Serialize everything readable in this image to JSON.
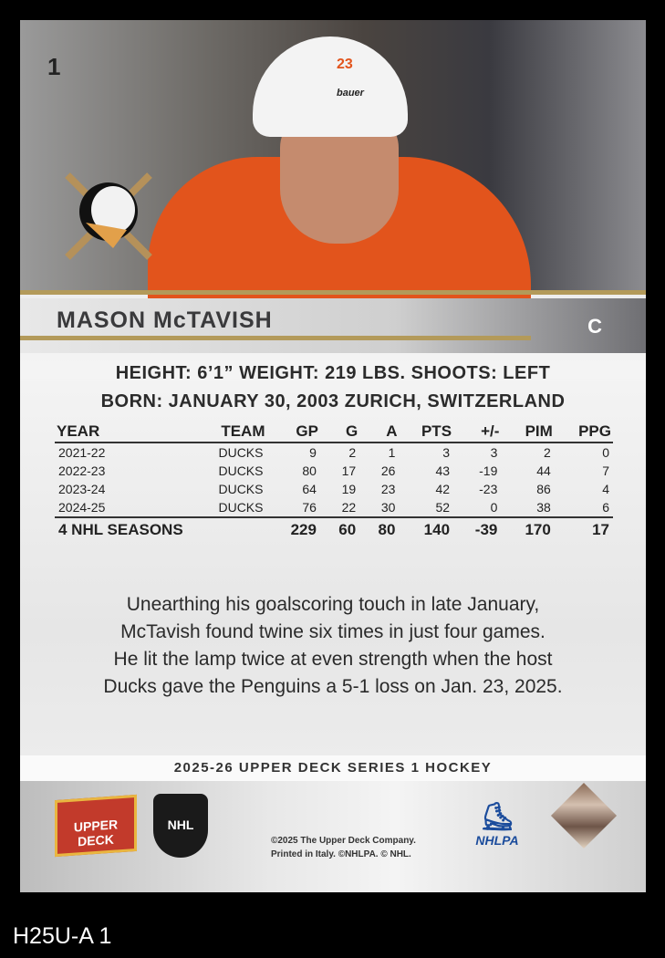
{
  "card": {
    "number": "1",
    "player_name": "MASON McTAVISH",
    "position": "C",
    "bio_line1": "HEIGHT: 6’1” WEIGHT: 219 LBS. SHOOTS: LEFT",
    "bio_line2": "BORN: JANUARY 30, 2003 ZURICH, SWITZERLAND",
    "jersey_number": "23",
    "helmet_brand": "BAUER"
  },
  "stats": {
    "headers": [
      "YEAR",
      "TEAM",
      "GP",
      "G",
      "A",
      "PTS",
      "+/-",
      "PIM",
      "PPG"
    ],
    "rows": [
      [
        "2021-22",
        "DUCKS",
        "9",
        "2",
        "1",
        "3",
        "3",
        "2",
        "0"
      ],
      [
        "2022-23",
        "DUCKS",
        "80",
        "17",
        "26",
        "43",
        "-19",
        "44",
        "7"
      ],
      [
        "2023-24",
        "DUCKS",
        "64",
        "19",
        "23",
        "42",
        "-23",
        "86",
        "4"
      ],
      [
        "2024-25",
        "DUCKS",
        "76",
        "22",
        "30",
        "52",
        "0",
        "38",
        "6"
      ]
    ],
    "total": [
      "4 NHL SEASONS",
      "229",
      "60",
      "80",
      "140",
      "-39",
      "170",
      "17"
    ]
  },
  "blurb": [
    "Unearthing his goalscoring touch in late January,",
    "McTavish found twine six times in just four games.",
    "He lit the lamp twice at even strength when the host",
    "Ducks gave the Penguins a 5-1 loss on Jan. 23, 2025."
  ],
  "series": "2025-26 UPPER DECK SERIES 1 HOCKEY",
  "footer": {
    "upper_deck": "UPPER DECK",
    "nhl": "NHL",
    "nhlpa": "NHLPA",
    "copyright1": "©2025 The Upper Deck Company.",
    "copyright2": "Printed in Italy. ©NHLPA. © NHL."
  },
  "scan_label": "H25U-A 1",
  "colors": {
    "gold": "#b39a5a",
    "ducks_orange": "#e2541c"
  }
}
